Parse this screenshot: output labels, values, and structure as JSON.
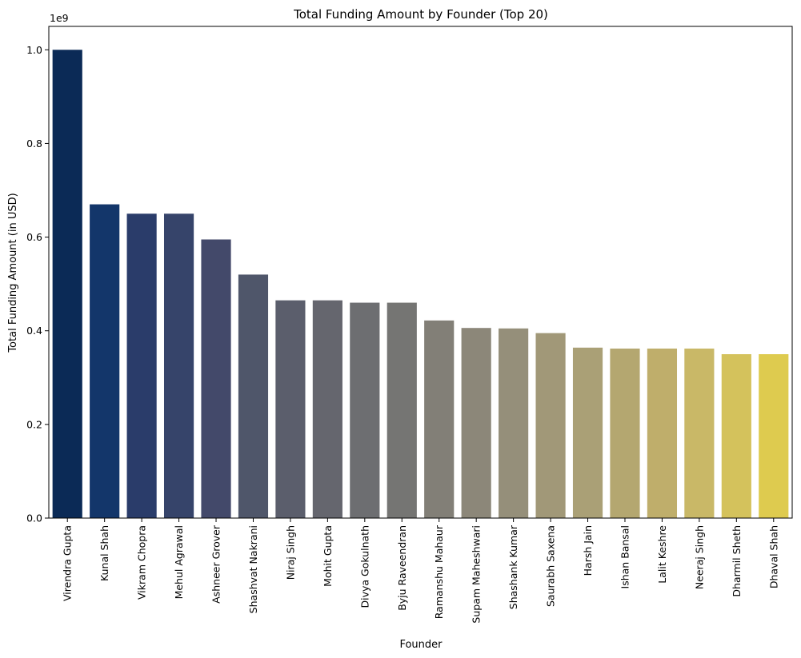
{
  "chart_data": {
    "type": "bar",
    "title": "Total Funding Amount by Founder (Top 20)",
    "xlabel": "Founder",
    "ylabel": "Total Funding Amount (in USD)",
    "offset_label": "1e9",
    "ylim": [
      0,
      1.05
    ],
    "yticks": [
      0.0,
      0.2,
      0.4,
      0.6,
      0.8,
      1.0
    ],
    "ytick_labels": [
      "0.0",
      "0.2",
      "0.4",
      "0.6",
      "0.8",
      "1.0"
    ],
    "grid": false,
    "legend": "none",
    "categories": [
      "Virendra Gupta",
      "Kunal Shah",
      "Vikram Chopra",
      "Mehul Agrawal",
      "Ashneer Grover",
      "Shashvat Nakrani",
      "Niraj Singh",
      "Mohit Gupta",
      "Divya Gokulnath",
      "Byju Raveendran",
      "Ramanshu Mahaur",
      "Supam Maheshwari",
      "Shashank Kumar",
      "Saurabh Saxena",
      "Harsh Jain",
      "Ishan Bansal",
      "Lalit Keshre",
      "Neeraj Singh",
      "Dharmil Sheth",
      "Dhaval Shah"
    ],
    "values": [
      1.0,
      0.67,
      0.65,
      0.65,
      0.595,
      0.52,
      0.465,
      0.465,
      0.46,
      0.46,
      0.422,
      0.406,
      0.405,
      0.395,
      0.364,
      0.362,
      0.362,
      0.362,
      0.35,
      0.35
    ],
    "colors": [
      "#0b2a56",
      "#13366a",
      "#2a3c6a",
      "#36446a",
      "#43496a",
      "#4f566a",
      "#5b5e6c",
      "#65666e",
      "#6d6e71",
      "#757573",
      "#827f77",
      "#8c8779",
      "#958f7a",
      "#a19878",
      "#aaa076",
      "#b4a770",
      "#bfae6b",
      "#c9b867",
      "#d4c25c",
      "#decb4f"
    ]
  }
}
